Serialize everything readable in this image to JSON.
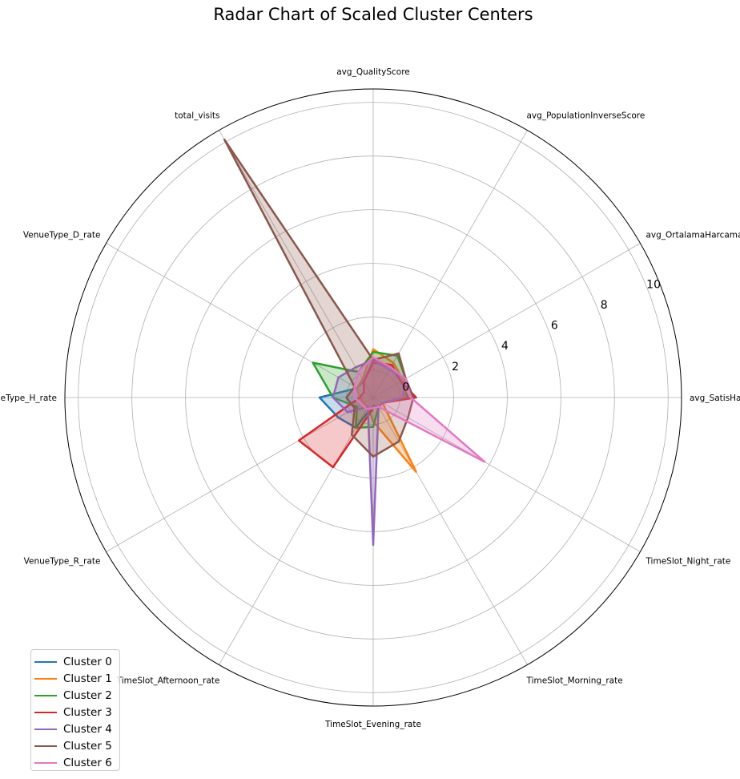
{
  "chart_data": {
    "type": "radar",
    "title": "Radar Chart of Scaled Cluster Centers",
    "axes": [
      "avg_SatisHacmi",
      "avg_OrtalamaHarcamaTutari",
      "avg_PopulationInverseScore",
      "avg_QualityScore",
      "total_visits",
      "VenueType_D_rate",
      "VenueType_H_rate",
      "VenueType_R_rate",
      "TimeSlot_Afternoon_rate",
      "TimeSlot_Evening_rate",
      "TimeSlot_Morning_rate",
      "TimeSlot_Night_rate"
    ],
    "rlim": [
      -1,
      10.5
    ],
    "rticks": [
      0,
      2,
      4,
      6,
      8,
      10
    ],
    "grid": true,
    "legend_position": "lower-left",
    "series": [
      {
        "name": "Cluster 0",
        "color": "#1f77b4",
        "values": [
          0.3,
          0.2,
          0.3,
          0.4,
          -0.3,
          -0.3,
          1.0,
          0.5,
          0.3,
          -0.7,
          -0.6,
          -0.6
        ]
      },
      {
        "name": "Cluster 1",
        "color": "#ff7f0e",
        "values": [
          0.2,
          0.3,
          0.5,
          0.8,
          -0.2,
          -0.3,
          -0.5,
          -0.6,
          -0.6,
          -0.1,
          2.2,
          -0.6
        ]
      },
      {
        "name": "Cluster 2",
        "color": "#2ca02c",
        "values": [
          0.5,
          0.4,
          0.8,
          0.7,
          0.1,
          1.6,
          0.5,
          -0.3,
          0.3,
          0.1,
          -0.6,
          -0.6
        ]
      },
      {
        "name": "Cluster 3",
        "color": "#d62728",
        "values": [
          0.6,
          0.2,
          0.4,
          0.3,
          -0.3,
          -0.6,
          -0.5,
          2.2,
          2.0,
          -0.6,
          -0.6,
          -0.6
        ]
      },
      {
        "name": "Cluster 4",
        "color": "#9467bd",
        "values": [
          0.1,
          0.4,
          0.2,
          0.4,
          0.3,
          0.5,
          0.5,
          0.1,
          -0.6,
          4.5,
          -0.6,
          -0.6
        ]
      },
      {
        "name": "Cluster 5",
        "color": "#8c564b",
        "values": [
          0.5,
          0.4,
          0.9,
          0.4,
          10.1,
          -0.2,
          0.0,
          -0.2,
          0.6,
          1.2,
          0.9,
          0.5
        ]
      },
      {
        "name": "Cluster 6",
        "color": "#e377c2",
        "values": [
          0.4,
          0.4,
          0.3,
          0.5,
          0.1,
          -0.2,
          -0.3,
          -0.5,
          -0.5,
          -0.6,
          -0.6,
          3.8
        ]
      }
    ]
  }
}
